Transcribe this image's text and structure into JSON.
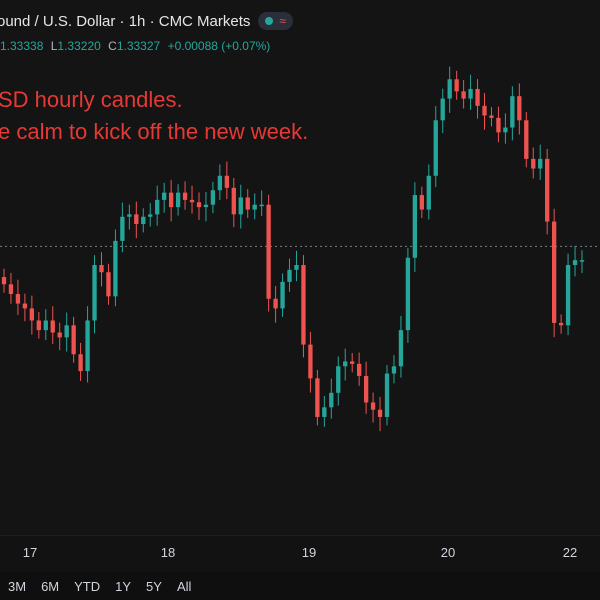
{
  "header": {
    "symbol_title": "ound / U.S. Dollar · 1h · CMC Markets",
    "status_wave": "≈"
  },
  "ohlc": {
    "open_value": "1.33338",
    "low_label": "L",
    "low_value": "1.33220",
    "close_label": "C",
    "close_value": "1.33327",
    "change": "+0.00088 (+0.07%)"
  },
  "annotation": {
    "line1": "SD hourly candles.",
    "line2": "e calm to kick off the new week."
  },
  "time_axis": {
    "labels": [
      "17",
      "18",
      "19",
      "20",
      "22"
    ]
  },
  "range_bar": {
    "buttons": [
      "3M",
      "6M",
      "YTD",
      "1Y",
      "5Y",
      "All"
    ]
  },
  "colors": {
    "up": "#26a69a",
    "down": "#ef5350",
    "background": "#141414",
    "annotation": "#e53935",
    "price_line": "#7a7e85"
  },
  "chart_data": {
    "type": "candlestick",
    "title": "",
    "xlabel": "",
    "ylabel": "",
    "x_ticks": [
      "17",
      "18",
      "19",
      "20",
      "22"
    ],
    "y_range_approx": [
      1.324,
      1.341
    ],
    "current_price": 1.33327,
    "candles_approx_close": [
      1.3317,
      1.3313,
      1.3309,
      1.3307,
      1.3302,
      1.3298,
      1.3302,
      1.3297,
      1.3295,
      1.33,
      1.3288,
      1.3281,
      1.3302,
      1.3325,
      1.3322,
      1.3312,
      1.3335,
      1.3345,
      1.3346,
      1.3342,
      1.3345,
      1.3346,
      1.3352,
      1.3355,
      1.3349,
      1.3355,
      1.3352,
      1.3351,
      1.3349,
      1.335,
      1.3356,
      1.3362,
      1.3357,
      1.3346,
      1.3353,
      1.3348,
      1.335,
      1.335,
      1.3311,
      1.3307,
      1.3318,
      1.3323,
      1.3325,
      1.3292,
      1.3278,
      1.3262,
      1.3266,
      1.3272,
      1.3283,
      1.3285,
      1.3284,
      1.3279,
      1.3268,
      1.3265,
      1.3262,
      1.328,
      1.3283,
      1.3298,
      1.3328,
      1.3354,
      1.3348,
      1.3362,
      1.3385,
      1.3394,
      1.3402,
      1.3397,
      1.3394,
      1.3398,
      1.3391,
      1.3387,
      1.3386,
      1.338,
      1.3382,
      1.3395,
      1.3385,
      1.3369,
      1.3365,
      1.3369,
      1.3343,
      1.3301,
      1.33,
      1.3325,
      1.3327,
      1.3327
    ]
  }
}
